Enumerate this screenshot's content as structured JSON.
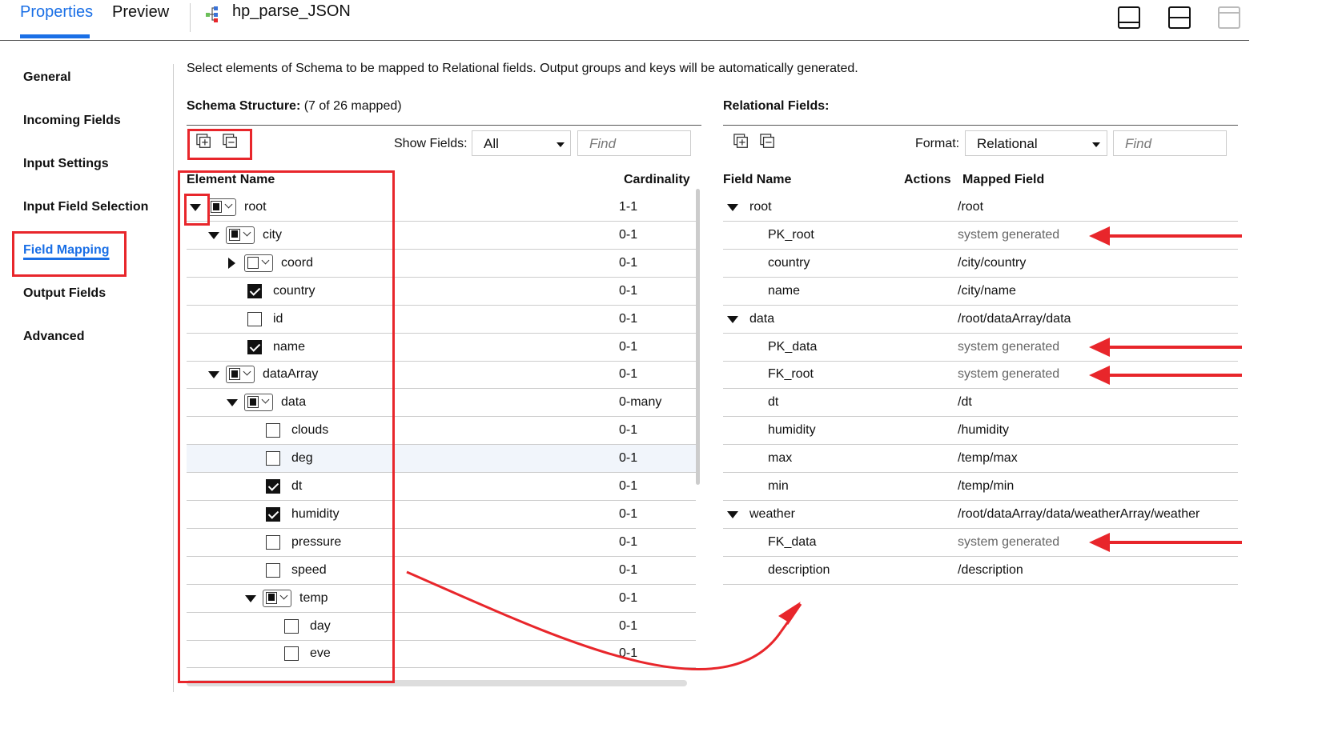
{
  "tabs": {
    "properties": "Properties",
    "preview": "Preview"
  },
  "mapping_name": "hp_parse_JSON",
  "nav": {
    "items": [
      "General",
      "Incoming Fields",
      "Input Settings",
      "Input Field Selection",
      "Field Mapping",
      "Output Fields",
      "Advanced"
    ],
    "active": "Field Mapping"
  },
  "description": "Select elements of Schema to be mapped to Relational fields. Output groups and keys will be automatically generated.",
  "schema": {
    "title": "Schema Structure:",
    "mapped_info": "(7 of 26 mapped)",
    "show_fields_label": "Show Fields:",
    "show_fields_value": "All",
    "find_placeholder": "Find",
    "col_element": "Element Name",
    "col_cardinality": "Cardinality",
    "rows": [
      {
        "name": "root",
        "card": "1-1",
        "state": "partial",
        "expander": "down"
      },
      {
        "name": "city",
        "card": "0-1",
        "state": "partial",
        "expander": "down"
      },
      {
        "name": "coord",
        "card": "0-1",
        "state": "unchecked_tri",
        "expander": "right"
      },
      {
        "name": "country",
        "card": "0-1",
        "state": "checked"
      },
      {
        "name": "id",
        "card": "0-1",
        "state": "unchecked"
      },
      {
        "name": "name",
        "card": "0-1",
        "state": "checked"
      },
      {
        "name": "dataArray",
        "card": "0-1",
        "state": "partial",
        "expander": "down"
      },
      {
        "name": "data",
        "card": "0-many",
        "state": "partial",
        "expander": "down"
      },
      {
        "name": "clouds",
        "card": "0-1",
        "state": "unchecked"
      },
      {
        "name": "deg",
        "card": "0-1",
        "state": "unchecked"
      },
      {
        "name": "dt",
        "card": "0-1",
        "state": "checked"
      },
      {
        "name": "humidity",
        "card": "0-1",
        "state": "checked"
      },
      {
        "name": "pressure",
        "card": "0-1",
        "state": "unchecked"
      },
      {
        "name": "speed",
        "card": "0-1",
        "state": "unchecked"
      },
      {
        "name": "temp",
        "card": "0-1",
        "state": "partial",
        "expander": "down"
      },
      {
        "name": "day",
        "card": "0-1",
        "state": "unchecked"
      },
      {
        "name": "eve",
        "card": "0-1",
        "state": "unchecked"
      }
    ]
  },
  "relational": {
    "title": "Relational Fields:",
    "format_label": "Format:",
    "format_value": "Relational",
    "find_placeholder": "Find",
    "col_field": "Field Name",
    "col_actions": "Actions",
    "col_mapped": "Mapped Field",
    "rows": [
      {
        "name": "root",
        "mapped": "/root",
        "group": true
      },
      {
        "name": "PK_root",
        "mapped": "system generated",
        "system": true
      },
      {
        "name": "country",
        "mapped": "/city/country"
      },
      {
        "name": "name",
        "mapped": "/city/name"
      },
      {
        "name": "data",
        "mapped": "/root/dataArray/data",
        "group": true
      },
      {
        "name": "PK_data",
        "mapped": "system generated",
        "system": true
      },
      {
        "name": "FK_root",
        "mapped": "system generated",
        "system": true
      },
      {
        "name": "dt",
        "mapped": "/dt"
      },
      {
        "name": "humidity",
        "mapped": "/humidity"
      },
      {
        "name": "max",
        "mapped": "/temp/max"
      },
      {
        "name": "min",
        "mapped": "/temp/min"
      },
      {
        "name": "weather",
        "mapped": "/root/dataArray/data/weatherArray/weather",
        "group": true
      },
      {
        "name": "FK_data",
        "mapped": "system generated",
        "system": true
      },
      {
        "name": "description",
        "mapped": "/description"
      }
    ]
  },
  "colors": {
    "accent": "#1a6fe6",
    "annotation": "#e8262b"
  }
}
